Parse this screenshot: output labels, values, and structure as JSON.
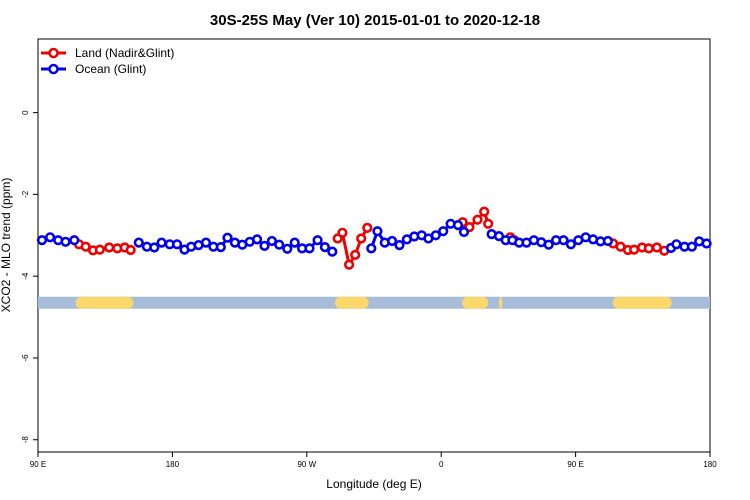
{
  "chart_data": {
    "type": "line",
    "title": "30S-25S May (Ver 10)   2015-01-01 to 2020-12-18",
    "xlabel": "Longitude (deg E)",
    "ylabel": "XCO2 - MLO trend (ppm)",
    "xlim": [
      0,
      100
    ],
    "ylim": [
      -8.3,
      1.8
    ],
    "x_ticks": [
      {
        "pos": 0,
        "label": "90 E"
      },
      {
        "pos": 20,
        "label": "180"
      },
      {
        "pos": 40,
        "label": "90 W"
      },
      {
        "pos": 60,
        "label": "0"
      },
      {
        "pos": 80,
        "label": "90 E"
      },
      {
        "pos": 100,
        "label": "180"
      }
    ],
    "y_ticks": [
      0,
      -2,
      -4,
      -6,
      -8
    ],
    "legend": {
      "position": "top-left",
      "entries": [
        {
          "label": "Land (Nadir&Glint)",
          "color": "#ee0000"
        },
        {
          "label": "Ocean (Glint)",
          "color": "#0000ee"
        }
      ]
    },
    "land_strip": {
      "y": -4.65,
      "ocean_color": "#a7bcd8",
      "land_color": "#fcd86c",
      "land_ranges": [
        [
          5.6,
          14.2
        ],
        [
          44.2,
          49.2
        ],
        [
          63.1,
          67.0
        ],
        [
          68.6,
          69.1
        ],
        [
          85.5,
          94.3
        ]
      ]
    },
    "series": [
      {
        "name": "Land (Nadir&Glint)",
        "color": "#ee0000",
        "segments": [
          [
            [
              6.1,
              -3.22
            ],
            [
              7.1,
              -3.28
            ],
            [
              8.2,
              -3.37
            ],
            [
              9.2,
              -3.35
            ],
            [
              10.6,
              -3.3
            ],
            [
              11.8,
              -3.32
            ],
            [
              12.9,
              -3.3
            ],
            [
              13.8,
              -3.36
            ]
          ],
          [
            [
              44.6,
              -3.08
            ],
            [
              45.3,
              -2.94
            ],
            [
              46.3,
              -3.72
            ],
            [
              47.2,
              -3.48
            ],
            [
              48.1,
              -3.08
            ],
            [
              49.0,
              -2.82
            ]
          ],
          [
            [
              63.2,
              -2.68
            ],
            [
              64.2,
              -2.8
            ],
            [
              65.4,
              -2.62
            ],
            [
              66.4,
              -2.42
            ],
            [
              67.0,
              -2.72
            ]
          ],
          [
            [
              70.3,
              -3.05
            ],
            [
              70.9,
              -3.12
            ]
          ],
          [
            [
              85.6,
              -3.2
            ],
            [
              86.7,
              -3.28
            ],
            [
              87.8,
              -3.36
            ],
            [
              88.7,
              -3.35
            ],
            [
              89.9,
              -3.3
            ],
            [
              90.9,
              -3.32
            ],
            [
              92.1,
              -3.3
            ],
            [
              93.2,
              -3.38
            ]
          ]
        ]
      },
      {
        "name": "Ocean (Glint)",
        "color": "#0000ee",
        "segments": [
          [
            [
              0.6,
              -3.12
            ],
            [
              1.8,
              -3.05
            ],
            [
              3.0,
              -3.12
            ],
            [
              4.1,
              -3.16
            ],
            [
              5.4,
              -3.12
            ]
          ],
          [
            [
              15.0,
              -3.18
            ],
            [
              16.2,
              -3.28
            ],
            [
              17.3,
              -3.3
            ],
            [
              18.4,
              -3.18
            ],
            [
              19.6,
              -3.22
            ],
            [
              20.7,
              -3.22
            ],
            [
              21.8,
              -3.35
            ],
            [
              22.8,
              -3.28
            ],
            [
              23.9,
              -3.24
            ],
            [
              25.0,
              -3.18
            ],
            [
              26.1,
              -3.28
            ],
            [
              27.2,
              -3.29
            ],
            [
              28.2,
              -3.06
            ],
            [
              29.3,
              -3.18
            ],
            [
              30.4,
              -3.23
            ],
            [
              31.5,
              -3.16
            ],
            [
              32.6,
              -3.1
            ],
            [
              33.7,
              -3.26
            ],
            [
              34.8,
              -3.14
            ],
            [
              35.9,
              -3.23
            ],
            [
              37.1,
              -3.33
            ],
            [
              38.2,
              -3.18
            ],
            [
              39.3,
              -3.32
            ],
            [
              40.4,
              -3.32
            ],
            [
              41.6,
              -3.12
            ],
            [
              42.7,
              -3.29
            ],
            [
              43.8,
              -3.4
            ]
          ],
          [
            [
              49.6,
              -3.32
            ],
            [
              50.5,
              -2.9
            ],
            [
              51.6,
              -3.18
            ],
            [
              52.7,
              -3.14
            ],
            [
              53.8,
              -3.24
            ],
            [
              54.9,
              -3.1
            ],
            [
              56.0,
              -3.03
            ],
            [
              57.1,
              -3.0
            ],
            [
              58.1,
              -3.08
            ],
            [
              59.2,
              -3.0
            ],
            [
              60.3,
              -2.9
            ],
            [
              61.4,
              -2.72
            ],
            [
              62.5,
              -2.75
            ],
            [
              63.4,
              -2.92
            ]
          ],
          [
            [
              67.5,
              -2.97
            ],
            [
              68.6,
              -3.02
            ],
            [
              69.6,
              -3.12
            ],
            [
              70.6,
              -3.12
            ],
            [
              71.6,
              -3.18
            ],
            [
              72.7,
              -3.18
            ],
            [
              73.8,
              -3.12
            ],
            [
              74.9,
              -3.17
            ],
            [
              76.0,
              -3.23
            ],
            [
              77.1,
              -3.12
            ],
            [
              78.2,
              -3.12
            ],
            [
              79.3,
              -3.22
            ],
            [
              80.4,
              -3.12
            ],
            [
              81.5,
              -3.05
            ],
            [
              82.6,
              -3.1
            ],
            [
              83.7,
              -3.15
            ],
            [
              84.8,
              -3.14
            ]
          ],
          [
            [
              94.2,
              -3.31
            ],
            [
              95.0,
              -3.22
            ],
            [
              96.2,
              -3.28
            ],
            [
              97.3,
              -3.28
            ],
            [
              98.4,
              -3.15
            ],
            [
              99.5,
              -3.2
            ]
          ]
        ]
      }
    ]
  }
}
